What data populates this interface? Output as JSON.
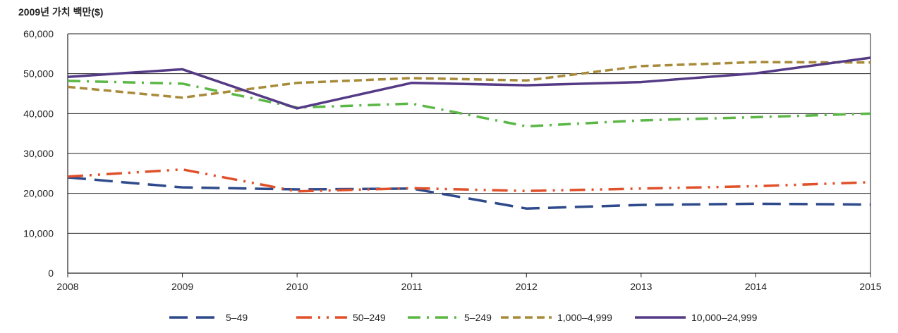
{
  "chart_data": {
    "type": "line",
    "title": "",
    "ylabel": "2009년 가치 백만($)",
    "xlabel": "",
    "x": [
      "2008",
      "2009",
      "2010",
      "2011",
      "2012",
      "2013",
      "2014",
      "2015"
    ],
    "ylim": [
      0,
      60000
    ],
    "yticks": [
      0,
      10000,
      20000,
      30000,
      40000,
      50000,
      60000
    ],
    "ytick_labels": [
      "0",
      "10,000",
      "20,000",
      "30,000",
      "40,000",
      "50,000",
      "60,000"
    ],
    "grid": "horizontal",
    "legend_position": "bottom",
    "series": [
      {
        "name": "5–49",
        "color": "#2E4A8B",
        "dash": "long-dash",
        "values": [
          24000,
          21500,
          21000,
          21200,
          16200,
          17100,
          17400,
          17200
        ]
      },
      {
        "name": "50–249",
        "color": "#E0502A",
        "dash": "dash-dot-dot",
        "values": [
          24200,
          26000,
          20500,
          21300,
          20600,
          21200,
          21800,
          22800
        ]
      },
      {
        "name": "5–249",
        "color": "#5BB746",
        "dash": "dash-dot",
        "values": [
          48200,
          47500,
          41500,
          42500,
          36800,
          38300,
          39100,
          40000
        ]
      },
      {
        "name": "1,000–4,999",
        "color": "#A88B3A",
        "dash": "short-dash",
        "values": [
          46700,
          44000,
          47700,
          48900,
          48300,
          51900,
          52900,
          52800
        ]
      },
      {
        "name": "10,000–24,999",
        "color": "#553A86",
        "dash": "solid",
        "values": [
          49200,
          51100,
          41300,
          47700,
          47100,
          47900,
          50100,
          54000
        ]
      }
    ]
  }
}
